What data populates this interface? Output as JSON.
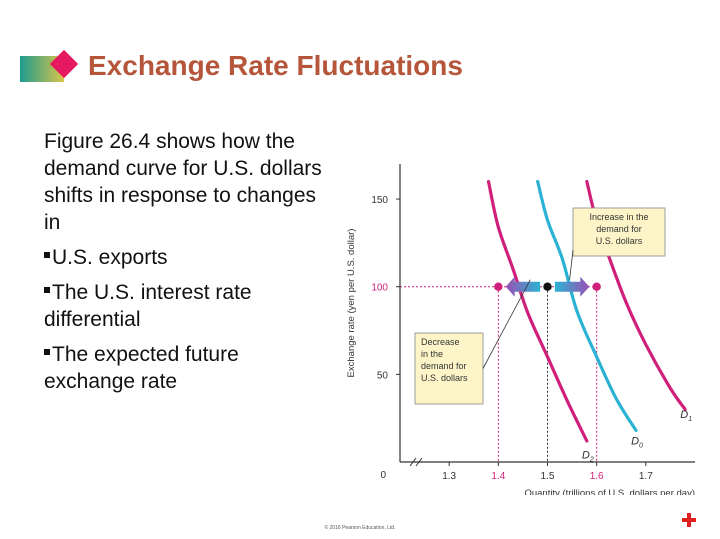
{
  "slide": {
    "title": "Exchange Rate Fluctuations",
    "intro": "Figure 26.4 shows how the demand curve for U.S. dollars shifts in response to changes in",
    "bullets": [
      "U.S. exports",
      "The U.S. interest rate differential",
      "The expected future exchange rate"
    ],
    "copyright": "© 2016 Pearson Education, Ltd."
  },
  "colors": {
    "title": "#b5563b",
    "d0": "#2ab2d4",
    "d1": "#d01f7a",
    "d2": "#d01f7a",
    "arrow_start": "#9b4fb3",
    "arrow_end": "#2bb4d4",
    "label_box": "#fdf5c8",
    "accent_icon": "#e02020"
  },
  "chart_data": {
    "type": "line",
    "xlabel": "Quantity (trillions of U.S. dollars per day)",
    "ylabel": "Exchange rate (yen per U.S. dollar)",
    "xlim": [
      1.2,
      1.8
    ],
    "ylim": [
      0,
      170
    ],
    "x_ticks": [
      "1.3",
      "1.4",
      "1.5",
      "1.6",
      "1.7"
    ],
    "x_tick_values": [
      1.3,
      1.4,
      1.5,
      1.6,
      1.7
    ],
    "highlight_ticks": [
      "1.4",
      "1.6"
    ],
    "y_ticks": [
      "50",
      "100",
      "150"
    ],
    "y_tick_values": [
      50,
      100,
      150
    ],
    "y_zero_label": "0",
    "highlight_y": "100",
    "series": [
      {
        "name": "D1",
        "label_main": "D",
        "label_sub": "1",
        "points": [
          [
            1.58,
            160
          ],
          [
            1.6,
            137
          ],
          [
            1.625,
            117
          ],
          [
            1.66,
            91
          ],
          [
            1.7,
            67
          ],
          [
            1.75,
            42
          ],
          [
            1.78,
            30
          ]
        ],
        "label_at": [
          1.77,
          25
        ]
      },
      {
        "name": "D0",
        "label_main": "D",
        "label_sub": "0",
        "points": [
          [
            1.48,
            160
          ],
          [
            1.5,
            138
          ],
          [
            1.53,
            116
          ],
          [
            1.56,
            86
          ],
          [
            1.6,
            60
          ],
          [
            1.64,
            36
          ],
          [
            1.68,
            18
          ]
        ],
        "label_at": [
          1.67,
          10
        ]
      },
      {
        "name": "D2",
        "label_main": "D",
        "label_sub": "2",
        "points": [
          [
            1.38,
            160
          ],
          [
            1.4,
            134
          ],
          [
            1.43,
            110
          ],
          [
            1.46,
            85
          ],
          [
            1.5,
            60
          ],
          [
            1.54,
            35
          ],
          [
            1.58,
            12
          ]
        ],
        "label_at": [
          1.57,
          2
        ]
      }
    ],
    "equilibrium_points": [
      {
        "x": 1.5,
        "y": 100,
        "kind": "original"
      },
      {
        "x": 1.4,
        "y": 100,
        "kind": "shifted"
      },
      {
        "x": 1.6,
        "y": 100,
        "kind": "shifted"
      }
    ],
    "shift_arrows": [
      {
        "from": 1.485,
        "to": 1.415,
        "y": 100
      },
      {
        "from": 1.515,
        "to": 1.585,
        "y": 100
      }
    ],
    "annotations": [
      {
        "text": [
          "Increase in the",
          "demand for",
          "U.S. dollars"
        ],
        "points_to": [
          1.545,
          104
        ]
      },
      {
        "text": [
          "Decrease",
          "in the",
          "demand for",
          "U.S. dollars"
        ],
        "points_to": [
          1.465,
          104
        ]
      }
    ]
  }
}
